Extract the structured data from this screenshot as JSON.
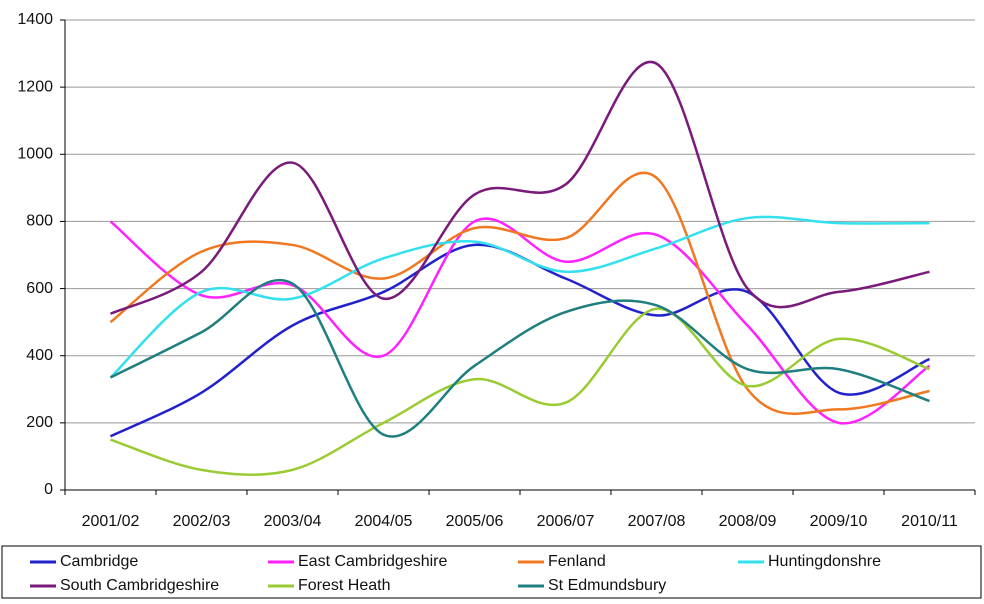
{
  "chart_data": {
    "type": "line",
    "smooth": true,
    "grid": true,
    "legend": "bottom",
    "categories": [
      "2001/02",
      "2002/03",
      "2003/04",
      "2004/05",
      "2005/06",
      "2006/07",
      "2007/08",
      "2008/09",
      "2009/10",
      "2010/11"
    ],
    "ylim": [
      0,
      1400
    ],
    "yticks": [
      0,
      200,
      400,
      600,
      800,
      1000,
      1200,
      1400
    ],
    "series": [
      {
        "name": "Cambridge",
        "color": "#2222cc",
        "values": [
          160,
          290,
          490,
          590,
          730,
          630,
          520,
          590,
          290,
          390
        ]
      },
      {
        "name": "East Cambridgeshire",
        "color": "#ff22ff",
        "values": [
          800,
          580,
          610,
          400,
          800,
          680,
          760,
          490,
          200,
          370
        ]
      },
      {
        "name": "Fenland",
        "color": "#f07820",
        "values": [
          500,
          710,
          730,
          630,
          780,
          750,
          930,
          300,
          240,
          295
        ]
      },
      {
        "name": "Huntingdonshre",
        "color": "#33e0f0",
        "values": [
          335,
          590,
          570,
          690,
          740,
          650,
          720,
          810,
          795,
          795
        ]
      },
      {
        "name": "South Cambridgeshire",
        "color": "#7a1a7a",
        "values": [
          525,
          650,
          975,
          570,
          880,
          910,
          1270,
          600,
          590,
          650
        ]
      },
      {
        "name": "Forest Heath",
        "color": "#99cc33",
        "values": [
          150,
          60,
          60,
          200,
          330,
          260,
          540,
          310,
          450,
          360
        ]
      },
      {
        "name": "St Edmundsbury",
        "color": "#1f7f7f",
        "values": [
          335,
          470,
          615,
          165,
          370,
          530,
          550,
          360,
          360,
          265
        ]
      }
    ]
  }
}
